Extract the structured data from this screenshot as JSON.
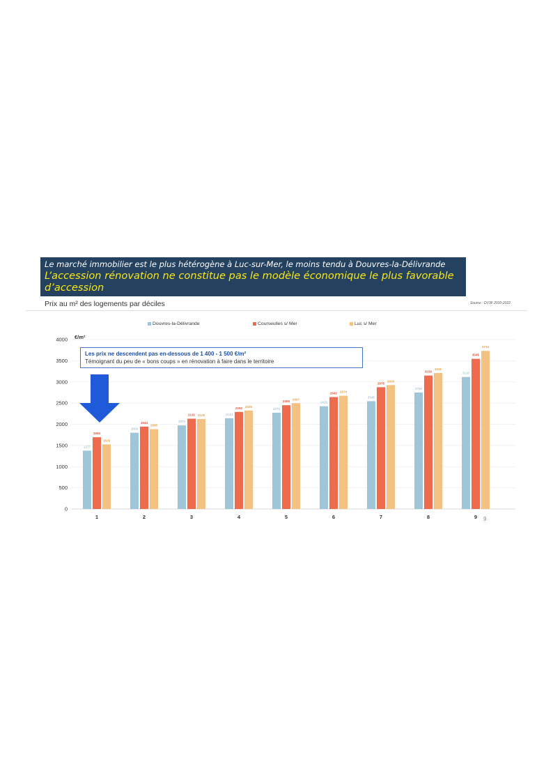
{
  "banner": {
    "line1": "Le marché immobilier est le plus hétérogène à Luc-sur-Mer, le moins tendu à Douvres-la-Délivrande",
    "line2": "L’accession rénovation ne constitue pas le modèle économique le plus favorable d’accession"
  },
  "subtitle": "Prix au m² des logements par déciles",
  "source": "Source : DV3F 2010-2022",
  "callout": {
    "line1": "Les prix ne descendent pas en-dessous de 1 400 - 1 500 €/m²",
    "line2": "Témoignant du peu de « bons coups » en rénovation à faire dans le territoire"
  },
  "page_number": "9",
  "colors": {
    "douvres": "#9fc5d8",
    "courseulles": "#ee6b4d",
    "luc": "#f3c283",
    "banner_bg": "#24415f",
    "banner_highlight": "#f7e81a",
    "arrow": "#1f5bd8"
  },
  "icons": {
    "arrow": "down-arrow-icon"
  },
  "chart_data": {
    "type": "bar",
    "title": "",
    "xlabel": "",
    "ylabel": "€/m²",
    "ylim": [
      0,
      4000
    ],
    "yticks": [
      "0",
      "500",
      "1000",
      "1500",
      "2000",
      "2500",
      "3000",
      "3500",
      "4000"
    ],
    "categories": [
      "1",
      "2",
      "3",
      "4",
      "5",
      "6",
      "7",
      "8",
      "9"
    ],
    "legend_position": "top",
    "grid": true,
    "series": [
      {
        "name": "Douvres-la-Délivrande",
        "values": [
          1377,
          1800,
          1974,
          2143,
          2273,
          2425,
          2545,
          2750,
          3116
        ]
      },
      {
        "name": "Courseulles s/ Mer",
        "values": [
          1694,
          1944,
          2131,
          2292,
          2450,
          2642,
          2875,
          3150,
          3545
        ]
      },
      {
        "name": "Luc s/ Mer",
        "values": [
          1526,
          1885,
          2125,
          2325,
          2497,
          2674,
          2925,
          3211,
          3733
        ]
      }
    ],
    "data_labels": [
      [
        "1377",
        "1800",
        "1974",
        "2143",
        "2273",
        "2425",
        "2545",
        "2750",
        "3116"
      ],
      [
        "1694",
        "1944",
        "2131",
        "2292",
        "2450",
        "2642",
        "2875",
        "3150",
        "3545"
      ],
      [
        "1526",
        "1885",
        "2125",
        "2325",
        "2497",
        "2674",
        "2925",
        "3211",
        "3733"
      ]
    ]
  }
}
